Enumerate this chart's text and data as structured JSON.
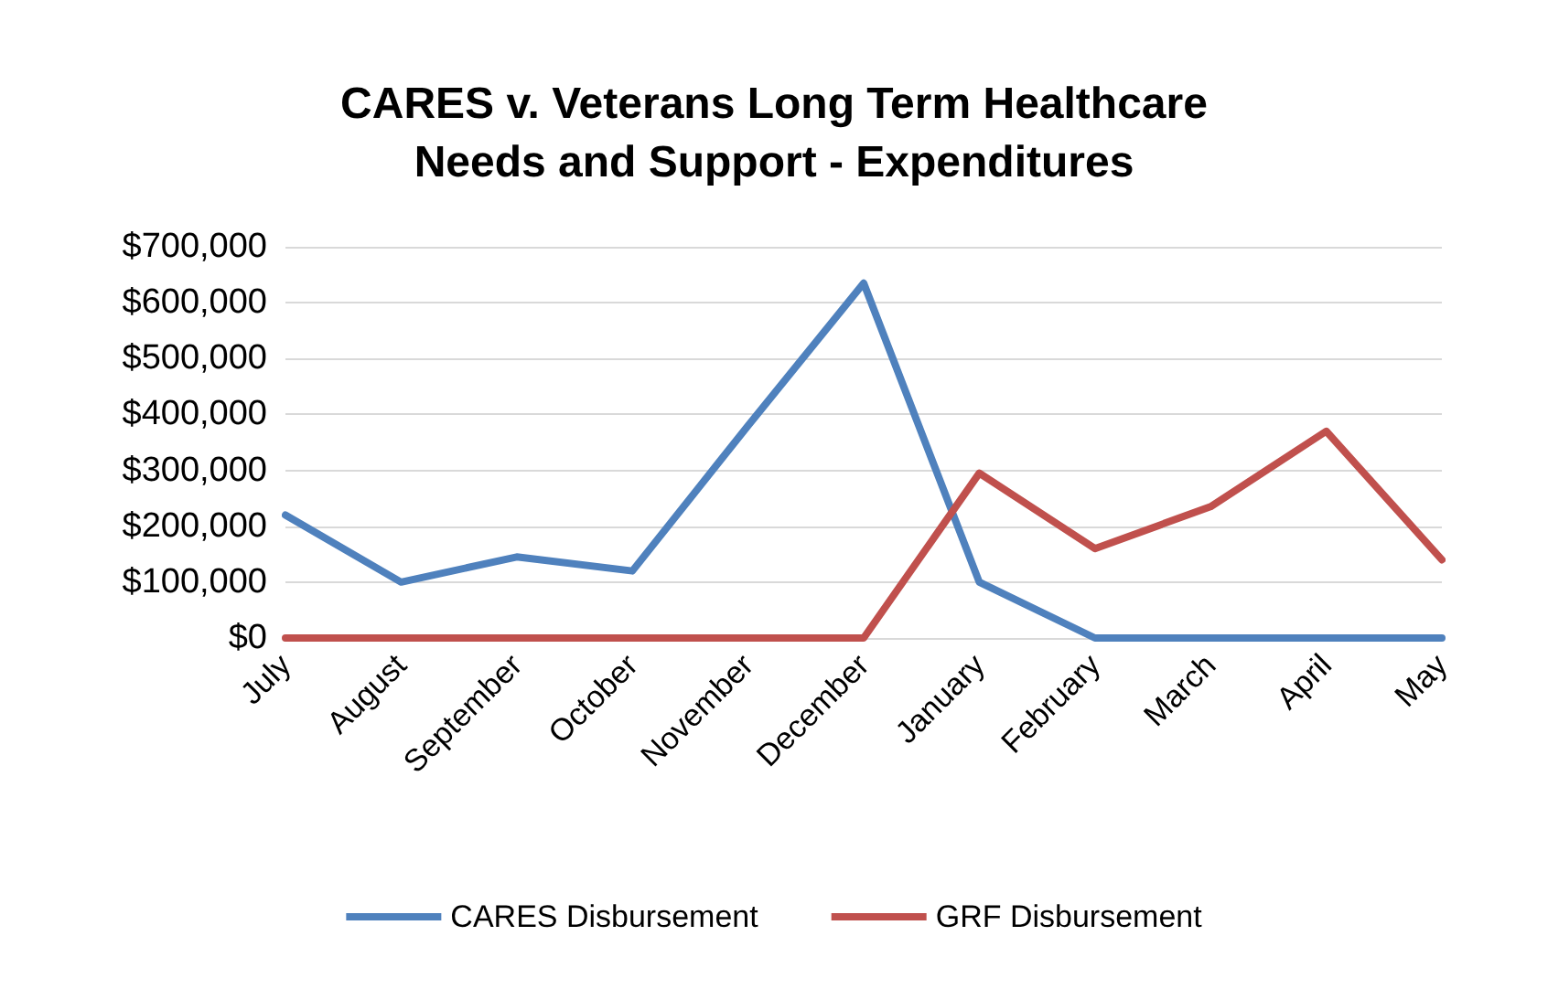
{
  "chart_data": {
    "type": "line",
    "title": "CARES v. Veterans Long Term Healthcare\nNeeds and Support - Expenditures",
    "categories": [
      "July",
      "August",
      "September",
      "October",
      "November",
      "December",
      "January",
      "February",
      "March",
      "April",
      "May"
    ],
    "series": [
      {
        "name": "CARES Disbursement",
        "color": "#4f81bd",
        "values": [
          220000,
          100000,
          145000,
          120000,
          380000,
          635000,
          100000,
          0,
          0,
          0,
          0
        ]
      },
      {
        "name": "GRF Disbursement",
        "color": "#c0504d",
        "values": [
          0,
          0,
          0,
          0,
          0,
          0,
          295000,
          160000,
          235000,
          370000,
          140000
        ]
      }
    ],
    "ylim": [
      0,
      700000
    ],
    "yticks": [
      {
        "value": 0,
        "label": "$0"
      },
      {
        "value": 100000,
        "label": "$100,000"
      },
      {
        "value": 200000,
        "label": "$200,000"
      },
      {
        "value": 300000,
        "label": "$300,000"
      },
      {
        "value": 400000,
        "label": "$400,000"
      },
      {
        "value": 500000,
        "label": "$500,000"
      },
      {
        "value": 600000,
        "label": "$600,000"
      },
      {
        "value": 700000,
        "label": "$700,000"
      }
    ],
    "grid": "y",
    "legend": "bottom",
    "marker": "none",
    "line_style": "solid"
  }
}
